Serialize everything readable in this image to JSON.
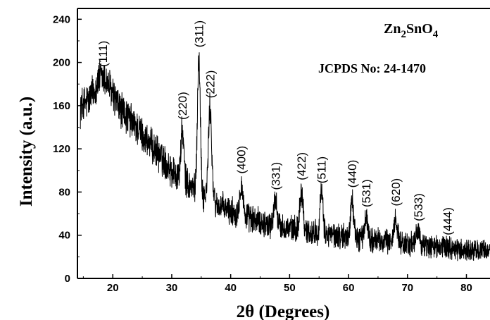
{
  "chart_data": {
    "type": "line",
    "title": "",
    "xlabel": "2θ (Degrees)",
    "ylabel": "Intensity (a.u.)",
    "xlim": [
      14,
      84
    ],
    "ylim": [
      0,
      250
    ],
    "xticks": [
      20,
      30,
      40,
      50,
      60,
      70,
      80
    ],
    "yticks": [
      0,
      40,
      80,
      120,
      160,
      200,
      240
    ],
    "grid": false,
    "line_color": "#000000",
    "annotations": {
      "compound": {
        "base": "Zn",
        "sub1": "2",
        "mid": "SnO",
        "sub2": "4"
      },
      "reference": "JCPDS No: 24-1470"
    },
    "peaks": [
      {
        "label": "(111)",
        "x": 18.3,
        "y": 192
      },
      {
        "label": "(220)",
        "x": 31.8,
        "y": 143
      },
      {
        "label": "(311)",
        "x": 34.6,
        "y": 210
      },
      {
        "label": "(222)",
        "x": 36.5,
        "y": 163
      },
      {
        "label": "(400)",
        "x": 41.8,
        "y": 93
      },
      {
        "label": "(331)",
        "x": 47.6,
        "y": 78
      },
      {
        "label": "(422)",
        "x": 52.0,
        "y": 87
      },
      {
        "label": "(511)",
        "x": 55.4,
        "y": 84
      },
      {
        "label": "(440)",
        "x": 60.6,
        "y": 80
      },
      {
        "label": "(531)",
        "x": 63.0,
        "y": 62
      },
      {
        "label": "(620)",
        "x": 68.0,
        "y": 63
      },
      {
        "label": "(533)",
        "x": 71.8,
        "y": 49
      },
      {
        "label": "(444)",
        "x": 76.8,
        "y": 36
      }
    ],
    "background": [
      [
        14.5,
        158
      ],
      [
        16,
        162
      ],
      [
        18,
        166
      ],
      [
        20,
        162
      ],
      [
        22,
        152
      ],
      [
        24,
        140
      ],
      [
        26,
        126
      ],
      [
        28,
        113
      ],
      [
        30,
        100
      ],
      [
        32,
        90
      ],
      [
        34,
        82
      ],
      [
        36,
        74
      ],
      [
        38,
        67
      ],
      [
        40,
        62
      ],
      [
        42,
        58
      ],
      [
        45,
        52
      ],
      [
        48,
        48
      ],
      [
        52,
        44
      ],
      [
        56,
        41
      ],
      [
        60,
        38
      ],
      [
        65,
        35
      ],
      [
        70,
        32
      ],
      [
        75,
        29
      ],
      [
        80,
        26
      ],
      [
        84,
        25
      ]
    ],
    "peak_widths": [
      1.8,
      0.35,
      0.35,
      0.4,
      0.4,
      0.4,
      0.4,
      0.35,
      0.35,
      0.4,
      0.4,
      0.45,
      0.45
    ],
    "noise_amplitude": [
      [
        14,
        16
      ],
      [
        40,
        12
      ],
      [
        84,
        9
      ]
    ]
  }
}
